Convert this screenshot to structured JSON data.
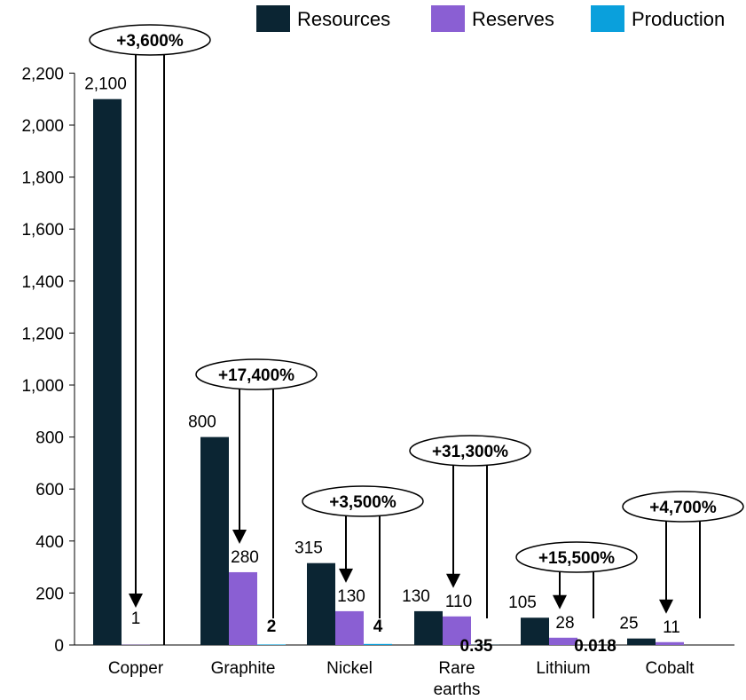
{
  "chart_data": {
    "type": "bar",
    "categories": [
      "Copper",
      "Graphite",
      "Nickel",
      "Rare earths",
      "Lithium",
      "Cobalt"
    ],
    "category_lines": [
      [
        "Copper"
      ],
      [
        "Graphite"
      ],
      [
        "Nickel"
      ],
      [
        "Rare",
        "earths"
      ],
      [
        "Lithium"
      ],
      [
        "Cobalt"
      ]
    ],
    "series": [
      {
        "name": "Resources",
        "color": "#0b2533",
        "values": [
          2100,
          800,
          315,
          130,
          105,
          25
        ],
        "labels": [
          "2,100",
          "800",
          "315",
          "130",
          "105",
          "25"
        ]
      },
      {
        "name": "Reserves",
        "color": "#8a5fd3",
        "values": [
          1,
          280,
          130,
          110,
          28,
          11
        ],
        "labels": [
          "1",
          "280",
          "130",
          "110",
          "28",
          "11"
        ]
      },
      {
        "name": "Production",
        "color": "#0aa0dc",
        "values": [
          0,
          2,
          4,
          0.35,
          0.018,
          0
        ],
        "labels": [
          "",
          "2",
          "4",
          "0.35",
          "0.018",
          ""
        ]
      }
    ],
    "annotations": [
      "+3,600%",
      "+17,400%",
      "+3,500%",
      "+31,300%",
      "+15,500%",
      "+4,700%"
    ],
    "yticks": [
      "0",
      "200",
      "400",
      "600",
      "800",
      "1,000",
      "1,200",
      "1,400",
      "1,600",
      "1,800",
      "2,000",
      "2,200"
    ],
    "ylim": [
      0,
      2200
    ],
    "legend_position": "top-right",
    "grid": false
  }
}
